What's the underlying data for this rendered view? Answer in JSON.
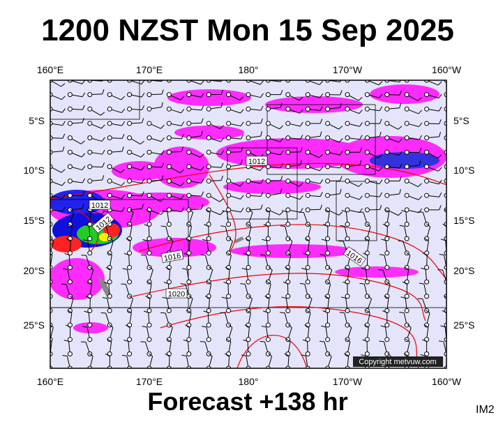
{
  "header": {
    "title": "1200 NZST Mon 15 Sep 2025"
  },
  "axes": {
    "top_labels": [
      "160°E",
      "170°E",
      "180°",
      "170°W",
      "160°W"
    ],
    "bottom_labels": [
      "160°E",
      "170°E",
      "180°",
      "170°W",
      "160°W"
    ],
    "left_labels": [
      "5°S",
      "10°S",
      "15°S",
      "20°S",
      "25°S"
    ],
    "right_labels": [
      "5°S",
      "10°S",
      "15°S",
      "20°S",
      "25°S"
    ]
  },
  "isobar_labels": [
    "1012",
    "1012",
    "1012",
    "1016",
    "1016",
    "1020"
  ],
  "copyright": "Copyright metvuw.com",
  "footer": {
    "forecast": "Forecast +138 hr",
    "code": "IM2"
  }
}
